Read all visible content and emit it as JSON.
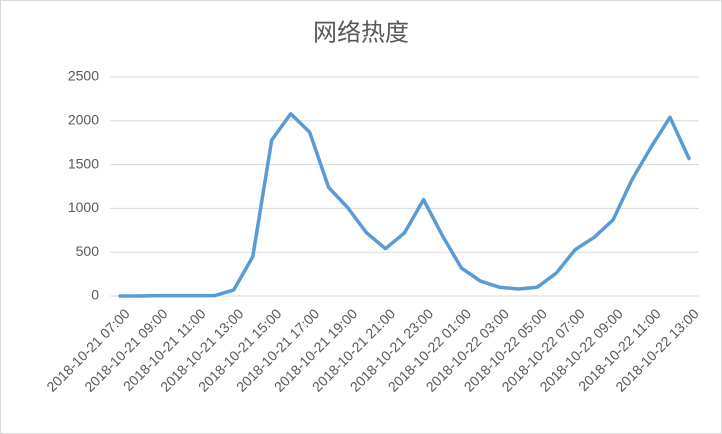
{
  "chart_data": {
    "type": "line",
    "title": "网络热度",
    "categories": [
      "2018-10-21 07:00",
      null,
      "2018-10-21 09:00",
      null,
      "2018-10-21 11:00",
      null,
      "2018-10-21 13:00",
      null,
      "2018-10-21 15:00",
      null,
      "2018-10-21 17:00",
      null,
      "2018-10-21 19:00",
      null,
      "2018-10-21 21:00",
      null,
      "2018-10-21 23:00",
      null,
      "2018-10-22 01:00",
      null,
      "2018-10-22 03:00",
      null,
      "2018-10-22 05:00",
      null,
      "2018-10-22 07:00",
      null,
      "2018-10-22 09:00",
      null,
      "2018-10-22 11:00",
      null,
      "2018-10-22 13:00"
    ],
    "values": [
      0,
      0,
      5,
      5,
      5,
      5,
      70,
      450,
      1780,
      2080,
      1870,
      1240,
      1010,
      720,
      540,
      720,
      1100,
      690,
      320,
      170,
      100,
      80,
      100,
      260,
      530,
      670,
      870,
      1330,
      1700,
      2040,
      1570
    ],
    "color": "#5b9bd5",
    "ylim": [
      0,
      2500
    ],
    "yticks": [
      0,
      500,
      1000,
      1500,
      2000,
      2500
    ],
    "grid": true
  }
}
